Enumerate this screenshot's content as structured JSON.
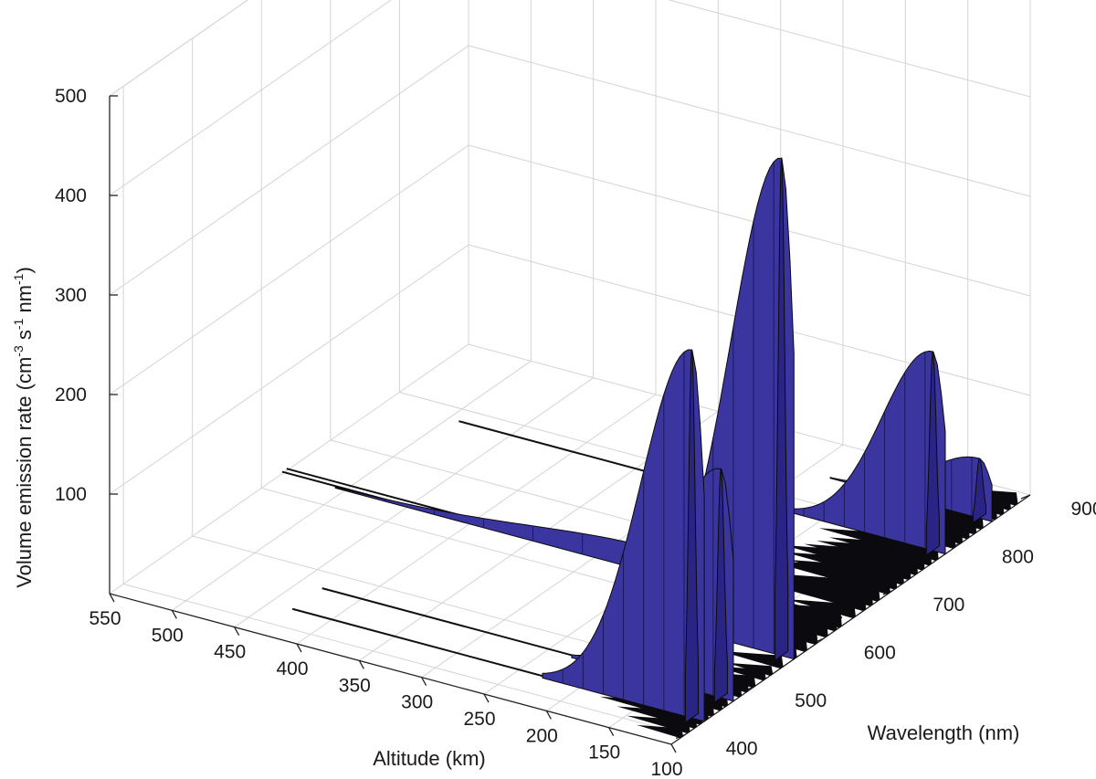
{
  "chart_data": {
    "type": "surface3d",
    "xlabel": "Altitude (km)",
    "ylabel": "Wavelength (nm)",
    "zlabel_main": "Volume emission rate (cm",
    "zlabel_sup1": "-3",
    "zlabel_mid1": " s",
    "zlabel_sup2": "-1",
    "zlabel_mid2": " nm",
    "zlabel_sup3": "-1",
    "zlabel_end": ")",
    "x_ticks": [
      "100",
      "150",
      "200",
      "250",
      "300",
      "350",
      "400",
      "450",
      "500",
      "550"
    ],
    "y_ticks": [
      "400",
      "500",
      "600",
      "700",
      "800",
      "900"
    ],
    "z_ticks": [
      "100",
      "200",
      "300",
      "400",
      "500"
    ],
    "xlim": [
      100,
      550
    ],
    "ylim": [
      380,
      900
    ],
    "zlim": [
      0,
      500
    ],
    "surface_color": "#3b35a0",
    "grid": true,
    "features": [
      {
        "name": "emission peak",
        "wavelength": 427.8,
        "altitude_peak": 110,
        "max_rate": 370
      },
      {
        "name": "emission peak",
        "wavelength": 470,
        "altitude_peak": 110,
        "max_rate": 230
      },
      {
        "name": "emission peak",
        "wavelength": 557.7,
        "altitude_peak": 110,
        "max_rate": 500
      },
      {
        "name": "emission peak",
        "wavelength": 630,
        "altitude_peak": 250,
        "max_rate": 25
      },
      {
        "name": "emission peak",
        "wavelength": 777,
        "altitude_peak": 110,
        "max_rate": 200
      },
      {
        "name": "emission peak",
        "wavelength": 844.6,
        "altitude_peak": 110,
        "max_rate": 60
      }
    ],
    "lines": [
      {
        "name": "line",
        "wavelength": 630,
        "alt_start": 550,
        "alt_end": 105
      },
      {
        "name": "line",
        "wavelength": 636.4,
        "alt_start": 550,
        "alt_end": 105
      },
      {
        "name": "line",
        "wavelength": 427.8,
        "alt_start": 430,
        "alt_end": 105
      },
      {
        "name": "line",
        "wavelength": 470.9,
        "alt_start": 430,
        "alt_end": 105
      },
      {
        "name": "line",
        "wavelength": 777.4,
        "alt_start": 490,
        "alt_end": 105
      }
    ]
  }
}
